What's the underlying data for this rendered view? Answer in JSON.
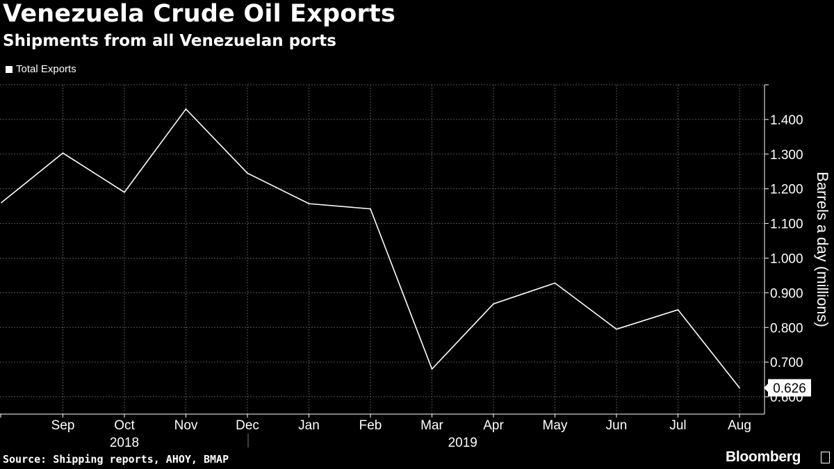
{
  "title": "Venezuela Crude Oil Exports",
  "subtitle": "Shipments from all Venezuelan ports",
  "legend_label": "Total Exports",
  "source": "Source: Shipping reports, AHOY, BMAP",
  "brand": "Bloomberg",
  "brand_icon": "bloomberg-terminal-icon",
  "colors": {
    "background": "#000000",
    "line": "#ffffff",
    "grid": "#555555"
  },
  "chart_data": {
    "type": "line",
    "title": "Venezuela Crude Oil Exports",
    "subtitle": "Shipments from all Venezuelan ports",
    "x": [
      "Aug",
      "Sep",
      "Oct",
      "Nov",
      "Dec",
      "Jan",
      "Feb",
      "Mar",
      "Apr",
      "May",
      "Jun",
      "Jul",
      "Aug"
    ],
    "x_tick_labels": [
      "Sep",
      "Oct",
      "Nov",
      "Dec",
      "Jan",
      "Feb",
      "Mar",
      "Apr",
      "May",
      "Jun",
      "Jul",
      "Aug"
    ],
    "year_labels": [
      "2018",
      "2019"
    ],
    "series": [
      {
        "name": "Total Exports",
        "values": [
          1.16,
          1.303,
          1.19,
          1.43,
          1.245,
          1.157,
          1.142,
          0.68,
          0.868,
          0.928,
          0.795,
          0.851,
          0.626
        ]
      }
    ],
    "ylabel": "Barrels a day (millions)",
    "y_ticks": [
      "0.600",
      "0.700",
      "0.800",
      "0.900",
      "1.000",
      "1.100",
      "1.200",
      "1.300",
      "1.400"
    ],
    "ylim": [
      0.55,
      1.5
    ],
    "last_value_label": "0.626",
    "grid": true,
    "legend_position": "top-left",
    "y_axis_position": "right"
  }
}
